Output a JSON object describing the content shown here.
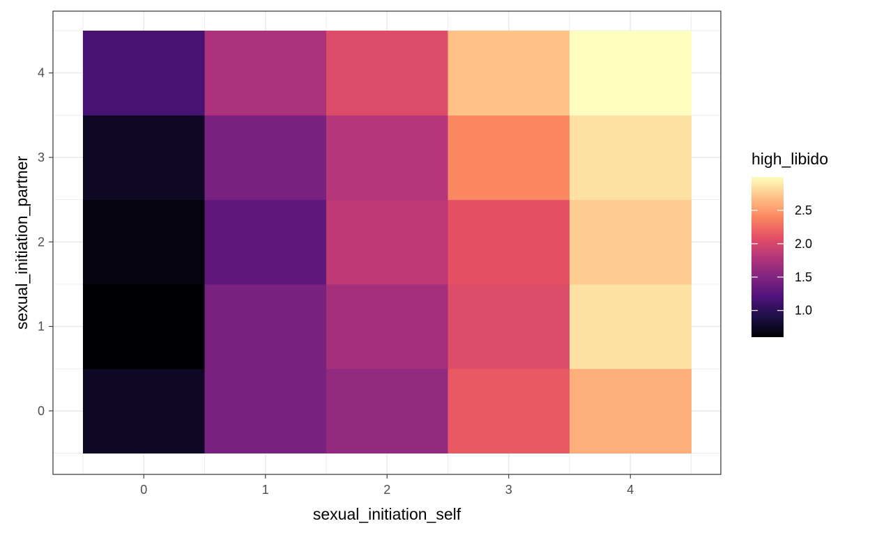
{
  "chart_data": {
    "type": "heatmap",
    "xlabel": "sexual_initiation_self",
    "ylabel": "sexual_initiation_partner",
    "x_categories": [
      "0",
      "1",
      "2",
      "3",
      "4"
    ],
    "y_categories": [
      "0",
      "1",
      "2",
      "3",
      "4"
    ],
    "values": [
      [
        0.75,
        1.45,
        1.6,
        2.15,
        2.6
      ],
      [
        0.6,
        1.45,
        1.7,
        2.05,
        2.85
      ],
      [
        0.65,
        1.3,
        1.85,
        2.1,
        2.75
      ],
      [
        0.75,
        1.45,
        1.8,
        2.4,
        2.85
      ],
      [
        1.15,
        1.75,
        2.05,
        2.7,
        3.0
      ]
    ],
    "legend": {
      "title": "high_libido",
      "ticks": [
        1.0,
        1.5,
        2.0,
        2.5
      ],
      "tick_labels": [
        "1.0",
        "1.5",
        "2.0",
        "2.5"
      ],
      "range": [
        0.6,
        3.0
      ]
    },
    "colormap": "magma",
    "grid": true,
    "legend_position": "right"
  }
}
